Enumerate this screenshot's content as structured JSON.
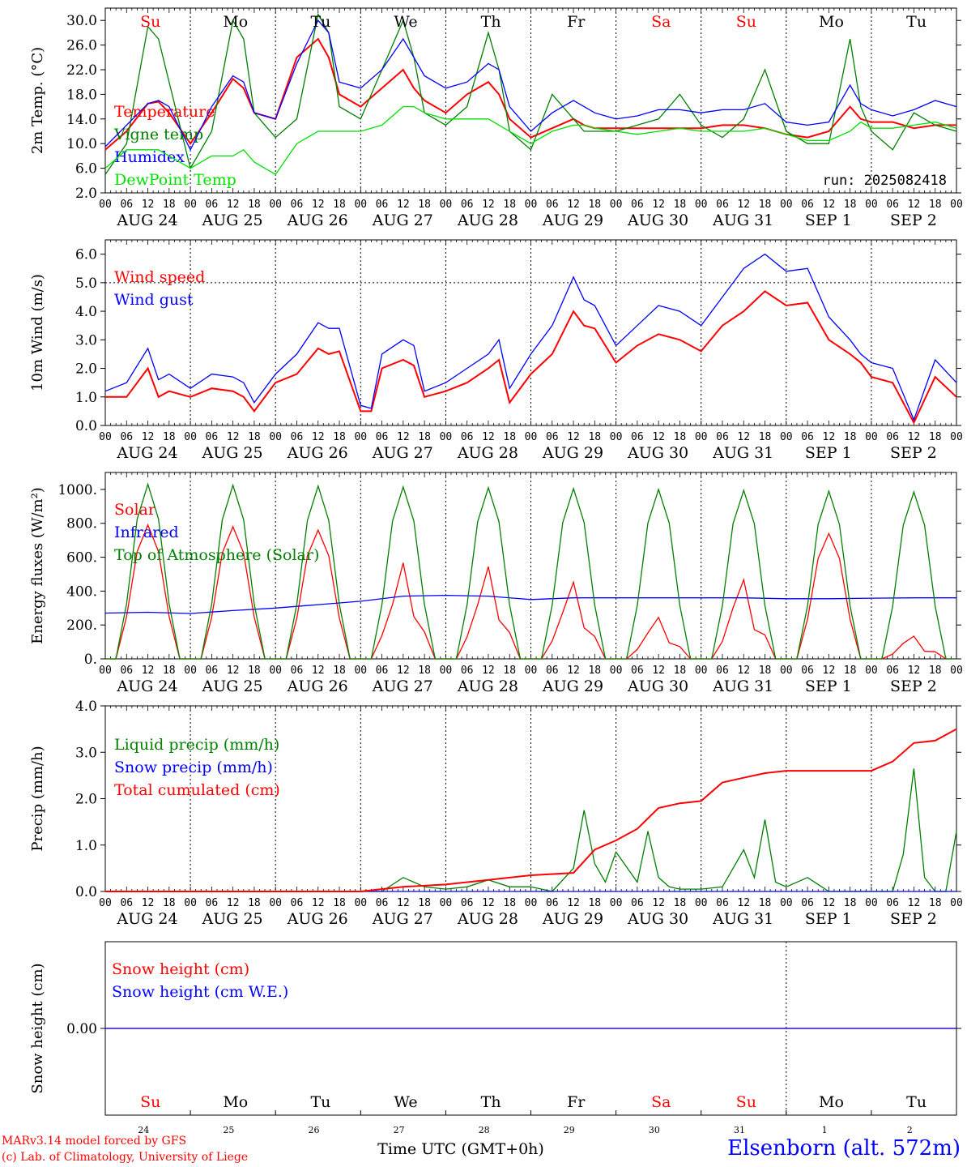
{
  "colors": {
    "red": "#ff0000",
    "darkgreen": "#008000",
    "blue": "#0000ff",
    "lightgreen": "#00e000",
    "black": "#000000"
  },
  "header_days": [
    {
      "label": "Su",
      "color": "#ff0000"
    },
    {
      "label": "Mo",
      "color": "#000000"
    },
    {
      "label": "Tu",
      "color": "#000000"
    },
    {
      "label": "We",
      "color": "#000000"
    },
    {
      "label": "Th",
      "color": "#000000"
    },
    {
      "label": "Fr",
      "color": "#000000"
    },
    {
      "label": "Sa",
      "color": "#ff0000"
    },
    {
      "label": "Su",
      "color": "#ff0000"
    },
    {
      "label": "Mo",
      "color": "#000000"
    },
    {
      "label": "Tu",
      "color": "#000000"
    }
  ],
  "date_labels": [
    "AUG 24",
    "AUG 25",
    "AUG 26",
    "AUG 27",
    "AUG 28",
    "AUG 29",
    "AUG 30",
    "AUG 31",
    "SEP  1",
    "SEP  2"
  ],
  "hour_labels": [
    "00",
    "06",
    "12",
    "18"
  ],
  "day_numbers": [
    "24",
    "25",
    "26",
    "27",
    "28",
    "29",
    "30",
    "31",
    "1",
    "2"
  ],
  "footer": {
    "model": "MARv3.14 model forced by GFS",
    "copyright": "(c) Lab. of Climatology, University of Liege",
    "time_label": "Time UTC (GMT+0h)",
    "station": "Elsenborn (alt. 572m)"
  },
  "chart_data": [
    {
      "type": "line",
      "ylabel": "2m Temp. (°C)",
      "ylim": [
        2.0,
        32.0
      ],
      "yticks": [
        2.0,
        6.0,
        10.0,
        14.0,
        18.0,
        22.0,
        26.0,
        30.0
      ],
      "tick_labels": [
        "2.0",
        "6.0",
        "10.0",
        "14.0",
        "18.0",
        "22.0",
        "26.0",
        "30.0"
      ],
      "annotation": "run: 2025082418",
      "x_hours": [
        0,
        6,
        12,
        15,
        18,
        24,
        30,
        36,
        39,
        42,
        48,
        54,
        60,
        63,
        66,
        72,
        78,
        84,
        87,
        90,
        96,
        102,
        108,
        111,
        114,
        120,
        126,
        132,
        135,
        138,
        144,
        150,
        156,
        162,
        168,
        174,
        180,
        186,
        192,
        198,
        204,
        210,
        213,
        216,
        222,
        228,
        234,
        240
      ],
      "series": [
        {
          "name": "Temperature",
          "color": "#ff0000",
          "values": [
            9.0,
            12.0,
            16.5,
            16.8,
            15.0,
            10.0,
            15.0,
            20.5,
            19.0,
            15.0,
            14.0,
            24.0,
            27.0,
            24.0,
            18.0,
            16.0,
            19.0,
            22.0,
            19.0,
            17.0,
            15.0,
            18.0,
            20.0,
            18.0,
            14.0,
            11.0,
            12.5,
            14.0,
            13.0,
            12.5,
            12.5,
            12.5,
            12.5,
            12.5,
            12.5,
            13.0,
            13.0,
            12.5,
            11.5,
            11.0,
            12.0,
            16.0,
            14.0,
            13.5,
            13.5,
            12.5,
            13.0,
            13.0
          ]
        },
        {
          "name": "Vigne temp",
          "color": "#008000",
          "values": [
            5.0,
            10.0,
            29.0,
            27.0,
            20.0,
            6.0,
            12.0,
            30.0,
            27.0,
            15.0,
            11.0,
            14.0,
            31.0,
            28.0,
            16.0,
            14.0,
            22.0,
            30.0,
            24.0,
            15.0,
            13.0,
            16.0,
            28.0,
            22.0,
            12.0,
            9.0,
            18.0,
            14.0,
            12.0,
            12.0,
            12.0,
            13.0,
            14.0,
            18.0,
            13.0,
            11.0,
            14.0,
            22.0,
            12.0,
            10.0,
            10.0,
            27.0,
            16.0,
            12.0,
            9.0,
            15.0,
            13.0,
            12.0
          ]
        },
        {
          "name": "Humidex",
          "color": "#0000ff",
          "values": [
            9.5,
            13.0,
            16.5,
            17.0,
            16.0,
            9.0,
            16.0,
            21.0,
            20.0,
            15.0,
            14.0,
            23.0,
            30.0,
            28.0,
            20.0,
            19.0,
            22.0,
            27.0,
            24.0,
            21.0,
            19.0,
            20.0,
            23.0,
            22.0,
            16.0,
            12.0,
            15.0,
            17.0,
            16.0,
            15.0,
            14.0,
            14.5,
            15.5,
            15.5,
            15.0,
            15.5,
            15.5,
            16.5,
            13.5,
            13.0,
            13.5,
            19.5,
            16.5,
            15.5,
            14.5,
            15.5,
            17.0,
            16.0
          ]
        },
        {
          "name": "DewPoint Temp",
          "color": "#00e000",
          "values": [
            6.0,
            9.0,
            9.0,
            9.0,
            8.0,
            6.0,
            8.0,
            8.0,
            9.0,
            7.0,
            5.0,
            10.0,
            12.0,
            12.0,
            12.0,
            12.0,
            13.0,
            16.0,
            16.0,
            15.0,
            14.0,
            14.0,
            14.0,
            13.0,
            12.0,
            10.0,
            12.0,
            13.0,
            13.0,
            12.5,
            12.0,
            11.5,
            12.0,
            12.5,
            12.0,
            12.0,
            12.0,
            12.5,
            11.5,
            10.5,
            10.5,
            12.0,
            13.5,
            12.5,
            12.5,
            13.0,
            13.5,
            12.5
          ]
        }
      ]
    },
    {
      "type": "line",
      "ylabel": "10m Wind (m/s)",
      "ylim": [
        0.0,
        6.5
      ],
      "yticks": [
        0.0,
        1.0,
        2.0,
        3.0,
        4.0,
        5.0,
        6.0
      ],
      "tick_labels": [
        "0.0",
        "1.0",
        "2.0",
        "3.0",
        "4.0",
        "5.0",
        "6.0"
      ],
      "ref_line": 5.0,
      "x_hours": [
        0,
        6,
        12,
        15,
        18,
        24,
        30,
        36,
        39,
        42,
        48,
        54,
        60,
        63,
        66,
        72,
        75,
        78,
        84,
        87,
        90,
        96,
        102,
        108,
        111,
        114,
        120,
        126,
        132,
        135,
        138,
        144,
        150,
        156,
        162,
        168,
        174,
        180,
        186,
        192,
        198,
        204,
        210,
        213,
        216,
        222,
        228,
        234,
        240
      ],
      "series": [
        {
          "name": "Wind speed",
          "color": "#ff0000",
          "values": [
            1.0,
            1.0,
            2.0,
            1.0,
            1.2,
            1.0,
            1.3,
            1.2,
            1.0,
            0.5,
            1.5,
            1.8,
            2.7,
            2.5,
            2.6,
            0.5,
            0.5,
            2.0,
            2.3,
            2.1,
            1.0,
            1.2,
            1.5,
            2.0,
            2.3,
            0.8,
            1.8,
            2.5,
            4.0,
            3.5,
            3.4,
            2.2,
            2.8,
            3.2,
            3.0,
            2.6,
            3.5,
            4.0,
            4.7,
            4.2,
            4.3,
            3.0,
            2.5,
            2.2,
            1.7,
            1.5,
            0.1,
            1.7,
            1.0
          ]
        },
        {
          "name": "Wind gust",
          "color": "#0000ff",
          "values": [
            1.2,
            1.5,
            2.7,
            1.6,
            1.8,
            1.3,
            1.8,
            1.7,
            1.5,
            0.8,
            1.8,
            2.5,
            3.6,
            3.4,
            3.4,
            0.7,
            0.6,
            2.5,
            3.0,
            2.8,
            1.2,
            1.5,
            2.0,
            2.5,
            3.0,
            1.3,
            2.5,
            3.5,
            5.2,
            4.4,
            4.2,
            2.8,
            3.5,
            4.2,
            4.0,
            3.5,
            4.5,
            5.5,
            6.0,
            5.4,
            5.5,
            3.8,
            3.0,
            2.5,
            2.2,
            2.0,
            0.2,
            2.3,
            1.5
          ]
        }
      ]
    },
    {
      "type": "line",
      "ylabel": "Energy fluxes (W/m²)",
      "ylim": [
        0,
        1100
      ],
      "yticks": [
        0,
        200,
        400,
        600,
        800,
        1000
      ],
      "tick_labels": [
        "0.",
        "200.",
        "400.",
        "600.",
        "800.",
        "1000."
      ],
      "series": [
        {
          "name": "Solar",
          "color": "#ff0000",
          "daily_peak": [
            790,
            780,
            760,
            570,
            550,
            460,
            250,
            480,
            740,
            140
          ]
        },
        {
          "name": "Infrared",
          "color": "#0000ff",
          "x_hours": [
            0,
            12,
            24,
            36,
            48,
            60,
            72,
            84,
            96,
            108,
            120,
            132,
            144,
            156,
            168,
            180,
            192,
            204,
            216,
            228,
            240
          ],
          "values": [
            270,
            275,
            268,
            285,
            300,
            320,
            340,
            370,
            375,
            370,
            350,
            360,
            360,
            360,
            360,
            360,
            355,
            355,
            358,
            360,
            360
          ]
        },
        {
          "name": "Top of Atmosphere (Solar)",
          "color": "#008000",
          "daily_peak": [
            1030,
            1025,
            1020,
            1015,
            1010,
            1005,
            1000,
            995,
            990,
            985
          ]
        }
      ]
    },
    {
      "type": "line",
      "ylabel": "Precip (mm/h)",
      "ylim": [
        0.0,
        4.0
      ],
      "yticks": [
        0.0,
        1.0,
        2.0,
        3.0,
        4.0
      ],
      "tick_labels": [
        "0.0",
        "1.0",
        "2.0",
        "3.0",
        "4.0"
      ],
      "series": [
        {
          "name": "Liquid precip (mm/h)",
          "color": "#008000",
          "x_hours": [
            0,
            78,
            84,
            90,
            96,
            102,
            108,
            114,
            120,
            126,
            132,
            135,
            138,
            141,
            144,
            150,
            153,
            156,
            159,
            162,
            168,
            174,
            180,
            183,
            186,
            189,
            192,
            198,
            204,
            216,
            222,
            225,
            228,
            231,
            234,
            237,
            240
          ],
          "values": [
            0,
            0,
            0.3,
            0.1,
            0.05,
            0.1,
            0.25,
            0.1,
            0.1,
            0,
            0.5,
            1.75,
            0.6,
            0.2,
            0.85,
            0.2,
            1.3,
            0.3,
            0.1,
            0.05,
            0.05,
            0.1,
            0.9,
            0.3,
            1.55,
            0.2,
            0.1,
            0.3,
            0,
            0,
            0,
            0.8,
            2.65,
            0.3,
            0,
            0,
            1.3
          ]
        },
        {
          "name": "Snow precip (mm/h)",
          "color": "#0000ff",
          "x_hours": [
            0,
            240
          ],
          "values": [
            0,
            0
          ]
        },
        {
          "name": "Total cumulated (cm)",
          "color": "#ff0000",
          "x_hours": [
            0,
            72,
            84,
            96,
            108,
            120,
            132,
            138,
            144,
            150,
            156,
            162,
            168,
            174,
            180,
            186,
            192,
            198,
            204,
            216,
            222,
            228,
            234,
            240
          ],
          "values": [
            0,
            0,
            0.1,
            0.15,
            0.25,
            0.35,
            0.4,
            0.9,
            1.1,
            1.35,
            1.8,
            1.9,
            1.95,
            2.35,
            2.45,
            2.55,
            2.6,
            2.6,
            2.6,
            2.6,
            2.8,
            3.2,
            3.25,
            3.5
          ]
        }
      ]
    },
    {
      "type": "line",
      "ylabel": "Snow height (cm)",
      "ylim": [
        -1,
        1
      ],
      "yticks": [
        0.0
      ],
      "tick_labels": [
        "0.00"
      ],
      "series": [
        {
          "name": "Snow height (cm)",
          "color": "#ff0000",
          "x_hours": [
            0,
            240
          ],
          "values": [
            0,
            0
          ]
        },
        {
          "name": "Snow height (cm W.E.)",
          "color": "#0000ff",
          "x_hours": [
            0,
            240
          ],
          "values": [
            0,
            0
          ]
        }
      ]
    }
  ]
}
